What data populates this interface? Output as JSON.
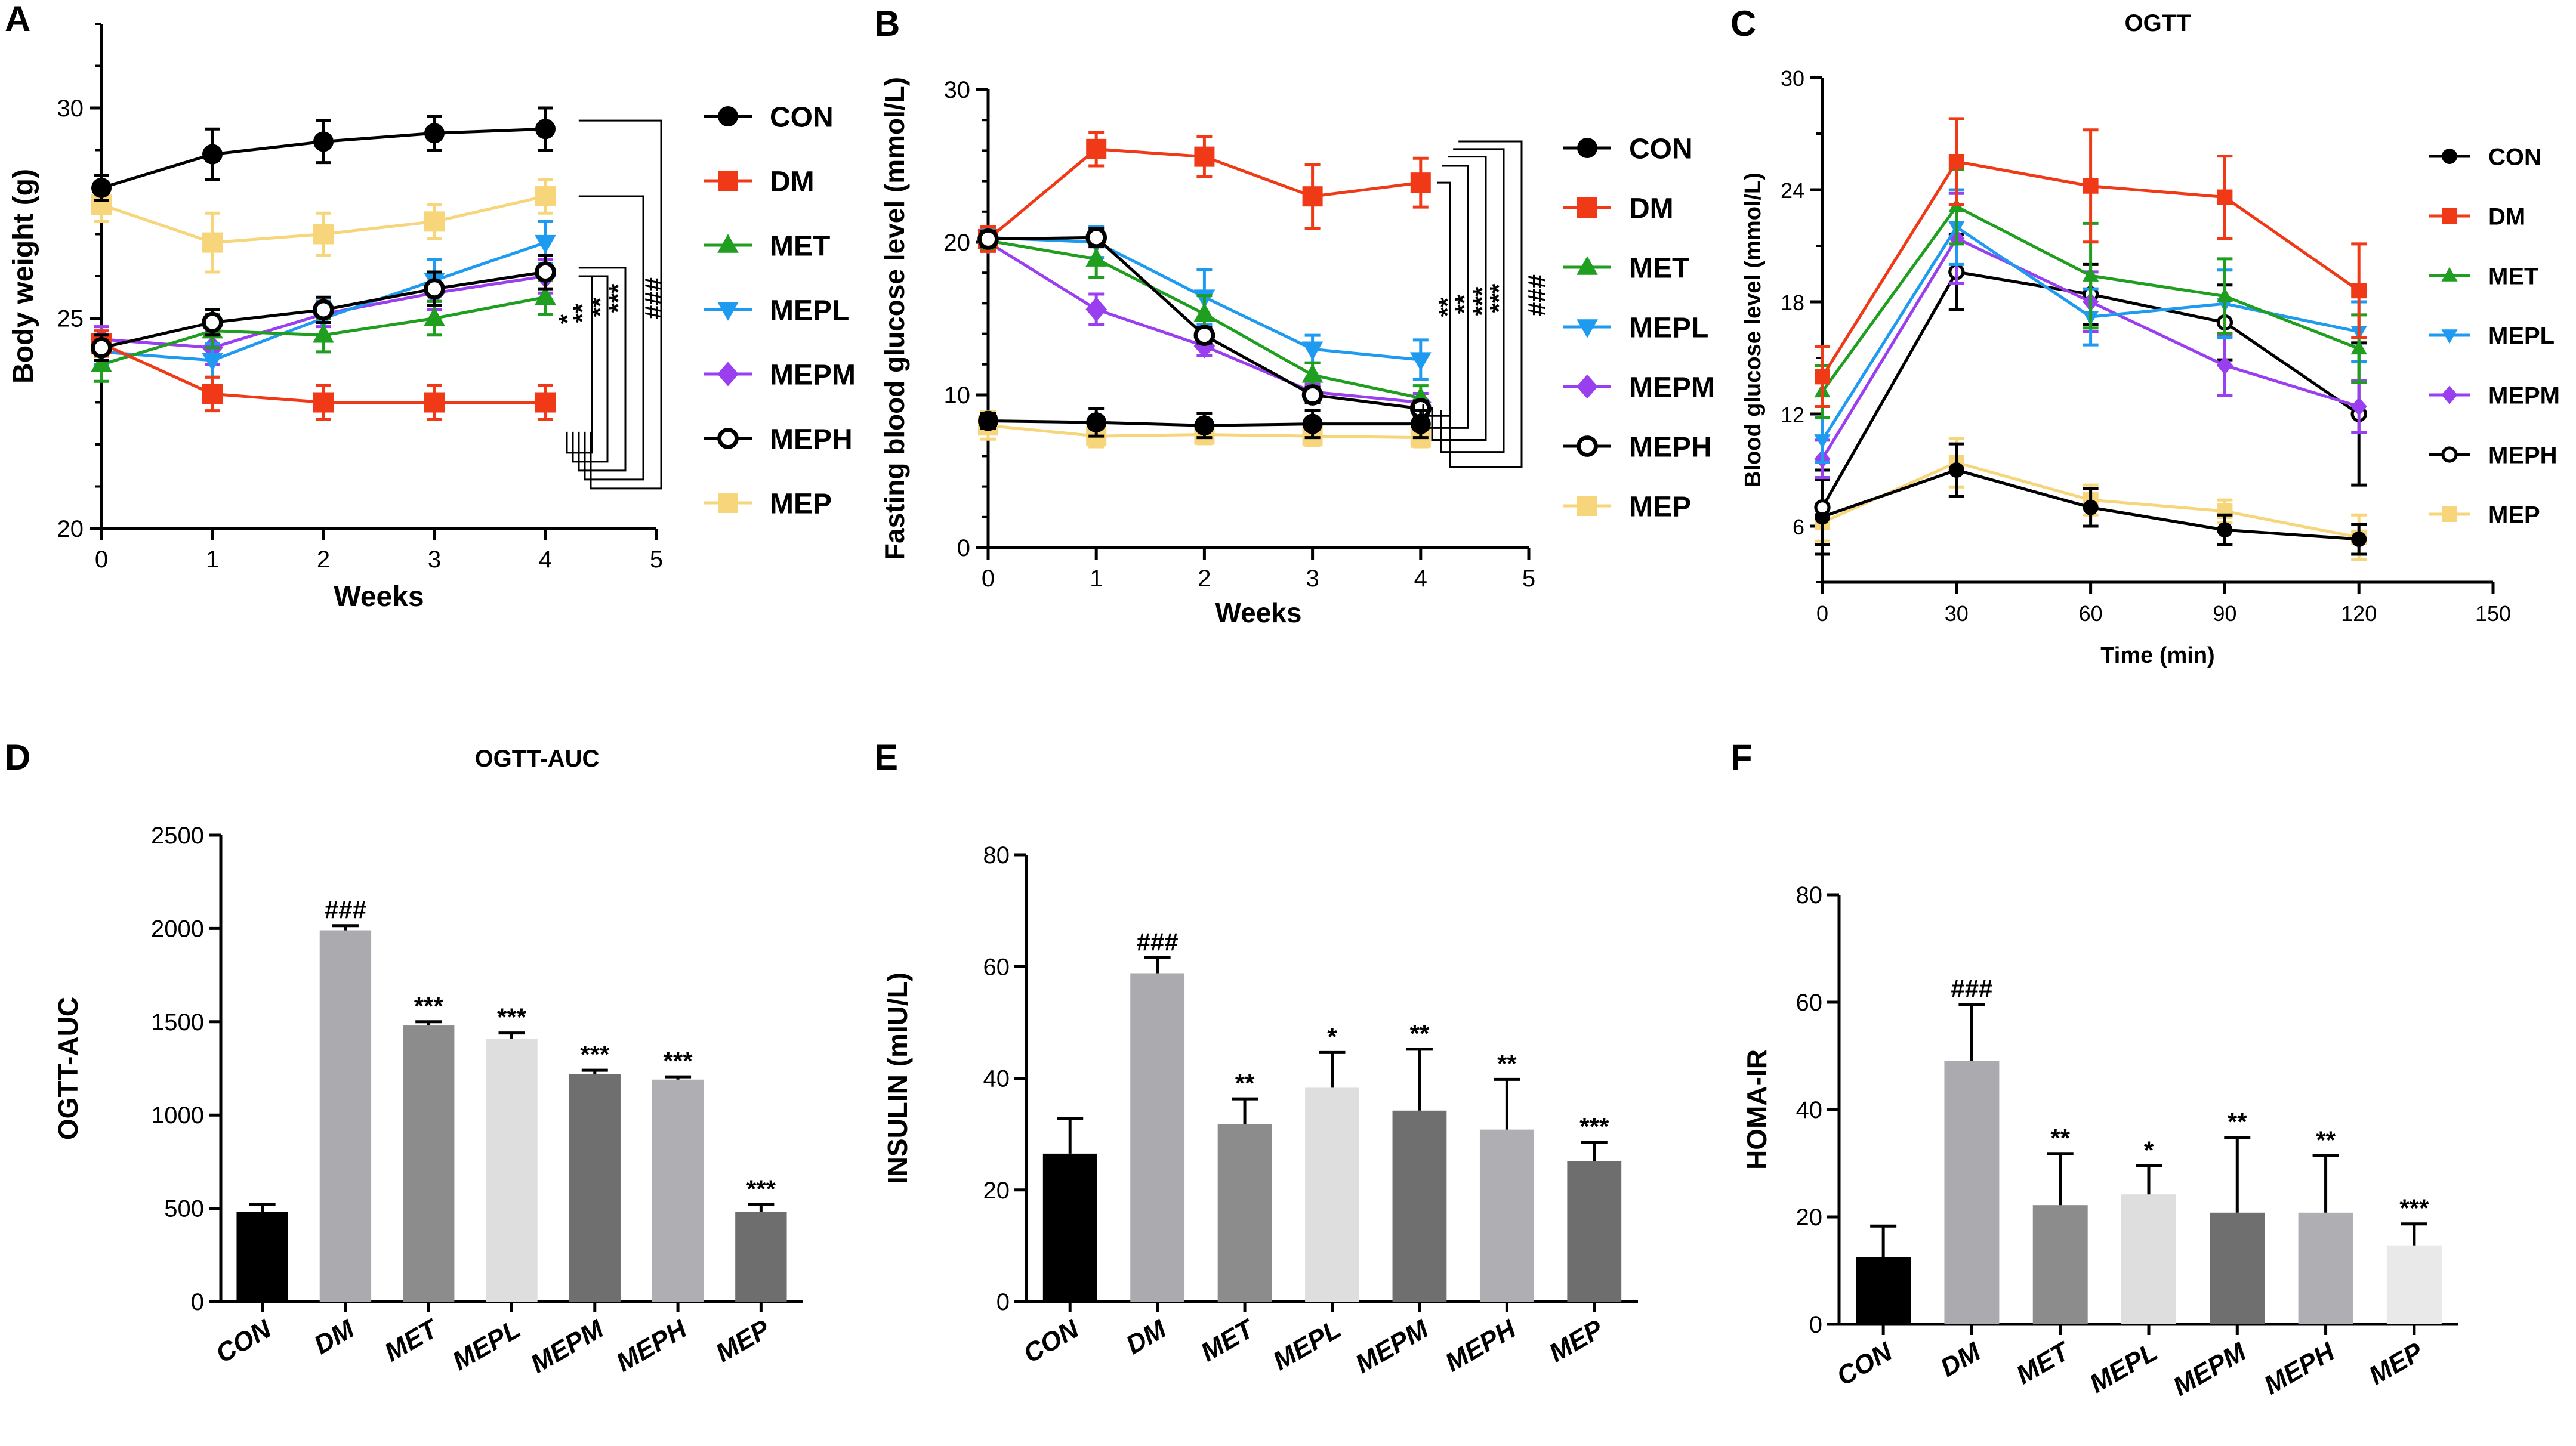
{
  "colors": {
    "CON": "#000000",
    "DM": "#f03a17",
    "MET": "#1f9e1f",
    "MEPL": "#1e9bf0",
    "MEPM": "#9a3ff0",
    "MEPH": "#000000",
    "MEP": "#f7d57a"
  },
  "chart_data": [
    {
      "panel": "A",
      "type": "line",
      "title": "",
      "xlabel": "Weeks",
      "ylabel": "Body weight (g)",
      "xlim": [
        0,
        5
      ],
      "ylim": [
        20,
        32
      ],
      "xticks": [
        "0",
        "1",
        "2",
        "3",
        "4",
        "5"
      ],
      "yticks": [
        "20",
        "25",
        "30"
      ],
      "x": [
        0,
        1,
        2,
        3,
        4
      ],
      "series": [
        {
          "name": "CON",
          "values": [
            28.1,
            28.9,
            29.2,
            29.4,
            29.5
          ],
          "errors": [
            0.3,
            0.6,
            0.5,
            0.4,
            0.5
          ]
        },
        {
          "name": "DM",
          "values": [
            24.4,
            23.2,
            23.0,
            23.0,
            23.0
          ],
          "errors": [
            0.3,
            0.4,
            0.4,
            0.4,
            0.4
          ]
        },
        {
          "name": "MET",
          "values": [
            23.9,
            24.7,
            24.6,
            25.0,
            25.5
          ],
          "errors": [
            0.4,
            0.4,
            0.4,
            0.4,
            0.4
          ]
        },
        {
          "name": "MEPL",
          "values": [
            24.2,
            24.0,
            25.0,
            25.9,
            26.8
          ],
          "errors": [
            0.3,
            0.4,
            0.4,
            0.5,
            0.5
          ]
        },
        {
          "name": "MEPM",
          "values": [
            24.5,
            24.3,
            25.1,
            25.6,
            26.0
          ],
          "errors": [
            0.3,
            0.4,
            0.3,
            0.4,
            0.4
          ]
        },
        {
          "name": "MEPH",
          "values": [
            24.3,
            24.9,
            25.2,
            25.7,
            26.1
          ],
          "errors": [
            0.3,
            0.3,
            0.3,
            0.4,
            0.4
          ]
        },
        {
          "name": "MEP",
          "values": [
            27.7,
            26.8,
            27.0,
            27.3,
            27.9
          ],
          "errors": [
            0.4,
            0.7,
            0.5,
            0.4,
            0.4
          ]
        }
      ],
      "annotations": [
        "*",
        "**",
        "**",
        "***",
        "###"
      ]
    },
    {
      "panel": "B",
      "type": "line",
      "title": "",
      "xlabel": "Weeks",
      "ylabel": "Fasting blood glucose level (mmol/L)",
      "xlim": [
        0,
        5
      ],
      "ylim": [
        0,
        30
      ],
      "xticks": [
        "0",
        "1",
        "2",
        "3",
        "4",
        "5"
      ],
      "yticks": [
        "0",
        "10",
        "20",
        "30"
      ],
      "x": [
        0,
        1,
        2,
        3,
        4
      ],
      "series": [
        {
          "name": "CON",
          "values": [
            8.3,
            8.2,
            8.0,
            8.1,
            8.1
          ],
          "errors": [
            0.5,
            0.9,
            0.8,
            0.9,
            0.9
          ]
        },
        {
          "name": "DM",
          "values": [
            20.2,
            26.1,
            25.6,
            23.0,
            23.9
          ],
          "errors": [
            0.8,
            1.1,
            1.3,
            2.1,
            1.6
          ]
        },
        {
          "name": "MET",
          "values": [
            20.1,
            18.9,
            15.3,
            11.3,
            9.8
          ],
          "errors": [
            0.6,
            1.2,
            1.2,
            0.8,
            0.8
          ]
        },
        {
          "name": "MEPL",
          "values": [
            20.3,
            20.0,
            16.4,
            13.0,
            12.3
          ],
          "errors": [
            0.5,
            1.0,
            1.8,
            0.9,
            1.3
          ]
        },
        {
          "name": "MEPM",
          "values": [
            20.0,
            15.6,
            13.2,
            10.2,
            9.5
          ],
          "errors": [
            0.5,
            1.0,
            0.6,
            0.5,
            0.6
          ]
        },
        {
          "name": "MEPH",
          "values": [
            20.2,
            20.3,
            13.9,
            10.0,
            9.1
          ],
          "errors": [
            0.5,
            0.6,
            0.5,
            0.5,
            0.5
          ]
        },
        {
          "name": "MEP",
          "values": [
            8.0,
            7.3,
            7.4,
            7.3,
            7.2
          ],
          "errors": [
            0.9,
            0.7,
            0.6,
            0.6,
            0.6
          ]
        }
      ],
      "annotations": [
        "**",
        "**",
        "***",
        "***",
        "###"
      ]
    },
    {
      "panel": "C",
      "type": "line",
      "title": "OGTT",
      "xlabel": "Time (min)",
      "ylabel": "Blood glucose level (mmol/L)",
      "xlim": [
        0,
        150
      ],
      "ylim": [
        3,
        30
      ],
      "xticks": [
        "0",
        "30",
        "60",
        "90",
        "120",
        "150"
      ],
      "yticks": [
        "6",
        "12",
        "18",
        "24",
        "30"
      ],
      "x": [
        0,
        30,
        60,
        90,
        120
      ],
      "series": [
        {
          "name": "CON",
          "values": [
            6.5,
            9.0,
            7.0,
            5.8,
            5.3
          ],
          "errors": [
            2.0,
            1.4,
            1.0,
            0.8,
            0.8
          ]
        },
        {
          "name": "DM",
          "values": [
            14.0,
            25.5,
            24.2,
            23.6,
            18.6
          ],
          "errors": [
            1.6,
            2.3,
            3.0,
            2.2,
            2.5
          ]
        },
        {
          "name": "MET",
          "values": [
            13.2,
            23.1,
            19.4,
            18.3,
            15.5
          ],
          "errors": [
            1.4,
            2.0,
            2.8,
            2.0,
            1.8
          ]
        },
        {
          "name": "MEPL",
          "values": [
            10.6,
            22.0,
            17.2,
            17.9,
            16.4
          ],
          "errors": [
            1.2,
            2.0,
            1.5,
            1.8,
            1.6
          ]
        },
        {
          "name": "MEPM",
          "values": [
            9.6,
            21.4,
            18.0,
            14.6,
            12.4
          ],
          "errors": [
            1.0,
            2.4,
            1.6,
            1.6,
            1.4
          ]
        },
        {
          "name": "MEPH",
          "values": [
            7.0,
            19.6,
            18.4,
            16.9,
            12.0
          ],
          "errors": [
            2.0,
            2.0,
            1.6,
            2.0,
            3.8
          ]
        },
        {
          "name": "MEP",
          "values": [
            6.2,
            9.4,
            7.4,
            6.8,
            5.4
          ],
          "errors": [
            1.0,
            1.3,
            0.8,
            0.6,
            1.2
          ]
        }
      ]
    },
    {
      "panel": "D",
      "type": "bar",
      "title": "OGTT-AUC",
      "xlabel": "",
      "ylabel": "OGTT-AUC",
      "ylim": [
        0,
        2500
      ],
      "yticks": [
        "0",
        "500",
        "1000",
        "1500",
        "2000",
        "2500"
      ],
      "categories": [
        "CON",
        "DM",
        "MET",
        "MEPL",
        "MEPM",
        "MEPH",
        "MEP"
      ],
      "values": [
        480,
        1990,
        1480,
        1410,
        1220,
        1190,
        480
      ],
      "errors": [
        40,
        25,
        20,
        30,
        20,
        15,
        40
      ],
      "labels": [
        "",
        "###",
        "***",
        "***",
        "***",
        "***",
        "***"
      ],
      "bar_colors": [
        "#000000",
        "#aaaaaf",
        "#8c8c8c",
        "#dedede",
        "#6f6f6f",
        "#aeaeb3",
        "#6e6e6e"
      ]
    },
    {
      "panel": "E",
      "type": "bar",
      "title": "",
      "xlabel": "",
      "ylabel": "INSULIN (mIU/L)",
      "ylim": [
        0,
        80
      ],
      "yticks": [
        "0",
        "20",
        "40",
        "60",
        "80"
      ],
      "categories": [
        "CON",
        "DM",
        "MET",
        "MEPL",
        "MEPM",
        "MEPH",
        "MEP"
      ],
      "values": [
        26.5,
        58.8,
        31.8,
        38.3,
        34.2,
        30.8,
        25.2
      ],
      "errors": [
        6.3,
        2.8,
        4.5,
        6.3,
        11.0,
        9.0,
        3.3
      ],
      "labels": [
        "",
        "###",
        "**",
        "*",
        "**",
        "**",
        "***"
      ],
      "bar_colors": [
        "#000000",
        "#aaaaaf",
        "#8c8c8c",
        "#dedede",
        "#6f6f6f",
        "#aeaeb3",
        "#6e6e6e"
      ]
    },
    {
      "panel": "F",
      "type": "bar",
      "title": "",
      "xlabel": "",
      "ylabel": "HOMA-IR",
      "ylim": [
        0,
        80
      ],
      "yticks": [
        "0",
        "20",
        "40",
        "60",
        "80"
      ],
      "categories": [
        "CON",
        "DM",
        "MET",
        "MEPL",
        "MEPM",
        "MEPH",
        "MEP"
      ],
      "values": [
        12.5,
        49.0,
        22.2,
        24.2,
        20.8,
        20.8,
        14.7
      ],
      "errors": [
        5.8,
        10.6,
        9.6,
        5.3,
        14.0,
        10.6,
        4.0
      ],
      "labels": [
        "",
        "###",
        "**",
        "*",
        "**",
        "**",
        "***"
      ],
      "bar_colors": [
        "#000000",
        "#aaaaaf",
        "#8c8c8c",
        "#dedede",
        "#6f6f6f",
        "#aeaeb3",
        "#e9e9e9"
      ]
    }
  ]
}
